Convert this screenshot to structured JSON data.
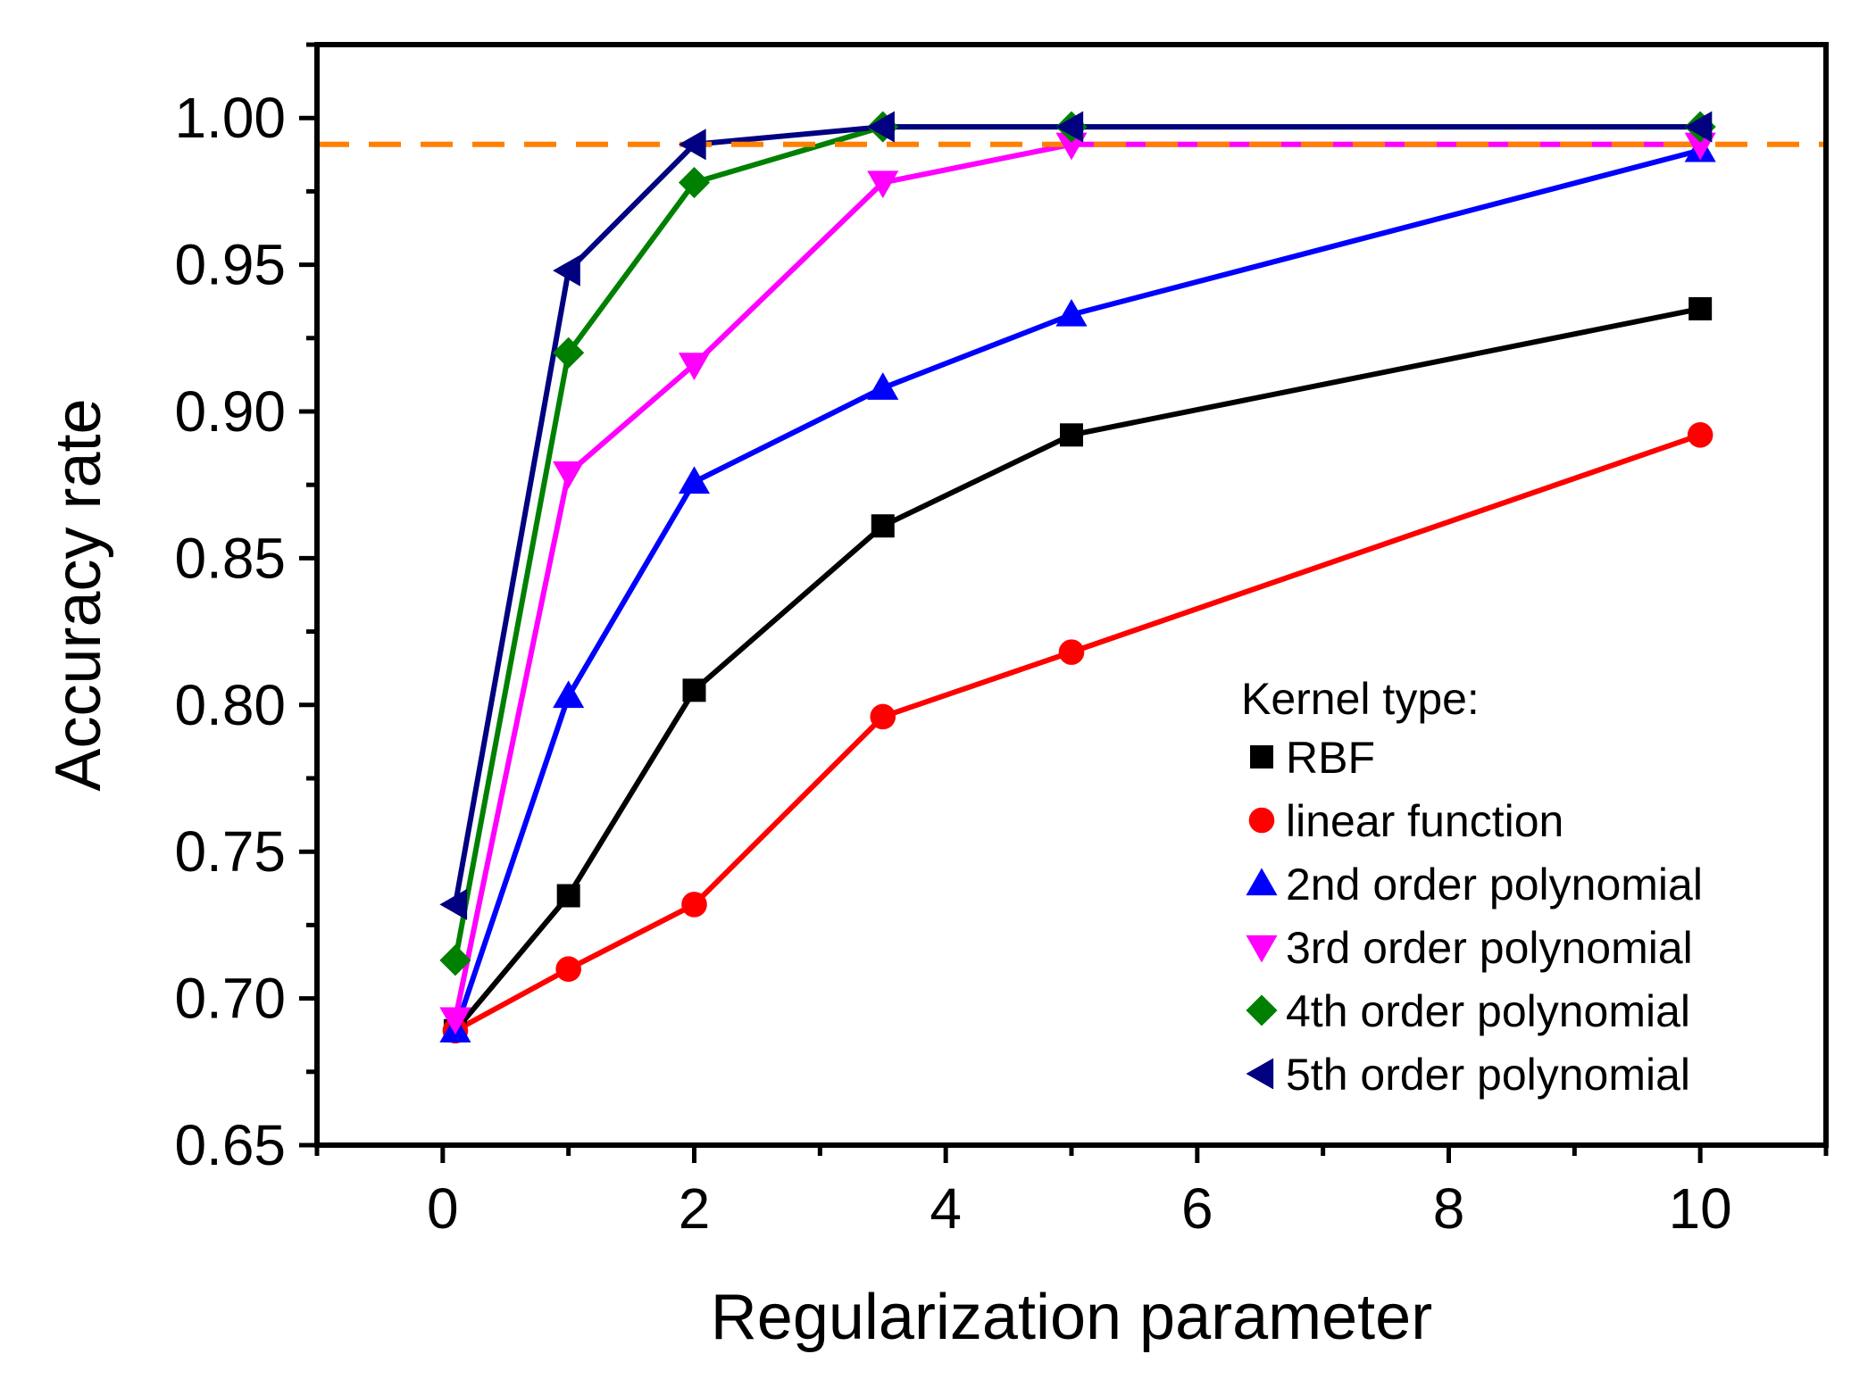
{
  "chart_data": {
    "type": "line",
    "title": "",
    "xlabel": "Regularization parameter",
    "ylabel": "Accuracy rate",
    "xlim": [
      -1,
      11
    ],
    "ylim": [
      0.65,
      1.025
    ],
    "xticks": [
      0,
      2,
      4,
      6,
      8,
      10
    ],
    "xtick_labels": [
      "0",
      "2",
      "4",
      "6",
      "8",
      "10"
    ],
    "yticks": [
      0.65,
      0.7,
      0.75,
      0.8,
      0.85,
      0.9,
      0.95,
      1.0
    ],
    "ytick_labels": [
      "0.65",
      "0.70",
      "0.75",
      "0.80",
      "0.85",
      "0.90",
      "0.95",
      "1.00"
    ],
    "grid": false,
    "legend_title": "Kernel type:",
    "legend_position": "bottom-right",
    "x": [
      0.1,
      1,
      2,
      3.5,
      5,
      10
    ],
    "series": [
      {
        "name": "RBF",
        "marker": "square",
        "color": "#000000",
        "values": [
          0.689,
          0.735,
          0.805,
          0.861,
          0.892,
          0.935
        ]
      },
      {
        "name": "linear function",
        "marker": "circle",
        "color": "#ff0000",
        "values": [
          0.689,
          0.71,
          0.732,
          0.796,
          0.818,
          0.892
        ]
      },
      {
        "name": "2nd order polynomial",
        "marker": "triangle-up",
        "color": "#0000ff",
        "values": [
          0.689,
          0.803,
          0.876,
          0.908,
          0.933,
          0.989
        ]
      },
      {
        "name": "3rd  order polynomial",
        "marker": "triangle-down",
        "color": "#ff00ff",
        "values": [
          0.693,
          0.879,
          0.916,
          0.978,
          0.991,
          0.991
        ]
      },
      {
        "name": "4th  order polynomial",
        "marker": "diamond",
        "color": "#008000",
        "values": [
          0.713,
          0.92,
          0.978,
          0.997,
          0.997,
          0.997
        ]
      },
      {
        "name": "5th  order polynomial",
        "marker": "triangle-left",
        "color": "#000080",
        "values": [
          0.732,
          0.948,
          0.991,
          0.997,
          0.997,
          0.997
        ]
      }
    ],
    "reference_line": {
      "y": 0.991,
      "style": "dashed",
      "color": "#ff8000"
    }
  }
}
